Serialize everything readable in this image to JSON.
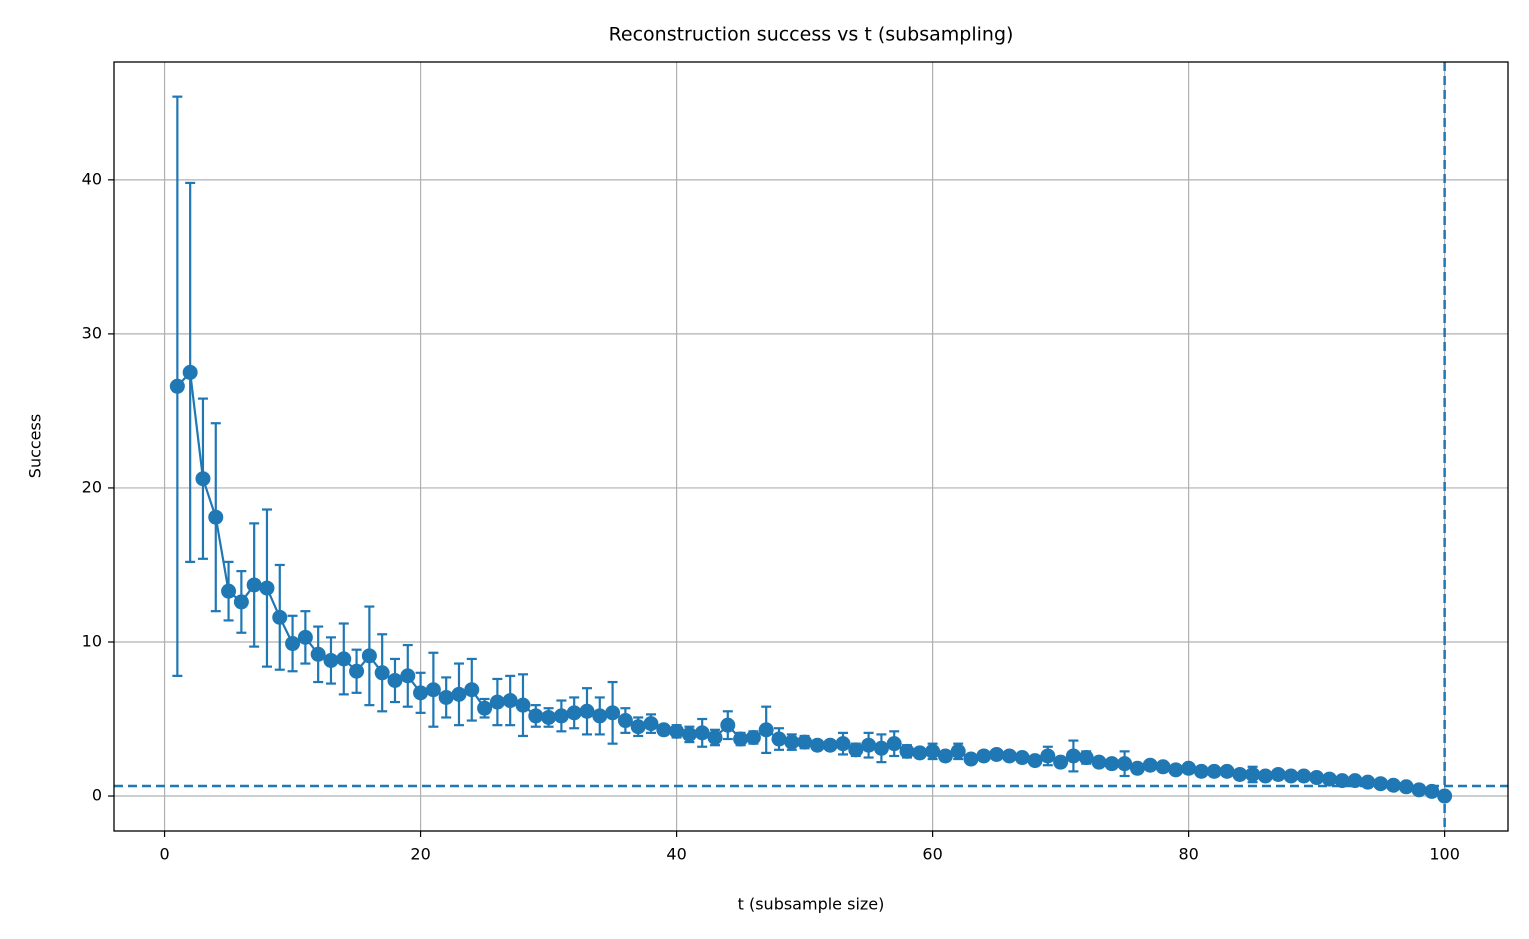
{
  "chart_data": {
    "type": "errorbar",
    "title": "Reconstruction success vs t (subsampling)",
    "xlabel": "t (subsample size)",
    "ylabel": "Success",
    "x": [
      1,
      2,
      3,
      4,
      5,
      6,
      7,
      8,
      9,
      10,
      11,
      12,
      13,
      14,
      15,
      16,
      17,
      18,
      19,
      20,
      21,
      22,
      23,
      24,
      25,
      26,
      27,
      28,
      29,
      30,
      31,
      32,
      33,
      34,
      35,
      36,
      37,
      38,
      39,
      40,
      41,
      42,
      43,
      44,
      45,
      46,
      47,
      48,
      49,
      50,
      51,
      52,
      53,
      54,
      55,
      56,
      57,
      58,
      59,
      60,
      61,
      62,
      63,
      64,
      65,
      66,
      67,
      68,
      69,
      70,
      71,
      72,
      73,
      74,
      75,
      76,
      77,
      78,
      79,
      80,
      81,
      82,
      83,
      84,
      85,
      86,
      87,
      88,
      89,
      90,
      91,
      92,
      93,
      94,
      95,
      96,
      97,
      98,
      99,
      100
    ],
    "series": [
      {
        "color": "#1f77b4",
        "values": [
          26.6,
          27.5,
          20.6,
          18.1,
          13.3,
          12.6,
          13.7,
          13.5,
          11.6,
          9.9,
          10.3,
          9.2,
          8.8,
          8.9,
          8.1,
          9.1,
          8.0,
          7.5,
          7.8,
          6.7,
          6.9,
          6.4,
          6.6,
          6.9,
          5.7,
          6.1,
          6.2,
          5.9,
          5.2,
          5.1,
          5.2,
          5.4,
          5.5,
          5.2,
          5.4,
          4.9,
          4.5,
          4.7,
          4.3,
          4.2,
          4.0,
          4.1,
          3.8,
          4.6,
          3.7,
          3.8,
          4.3,
          3.7,
          3.5,
          3.5,
          3.3,
          3.3,
          3.4,
          3.0,
          3.3,
          3.1,
          3.4,
          2.9,
          2.8,
          2.9,
          2.6,
          2.9,
          2.4,
          2.6,
          2.7,
          2.6,
          2.5,
          2.3,
          2.6,
          2.2,
          2.6,
          2.5,
          2.2,
          2.1,
          2.1,
          1.8,
          2.0,
          1.9,
          1.7,
          1.8,
          1.6,
          1.6,
          1.6,
          1.4,
          1.4,
          1.3,
          1.4,
          1.3,
          1.3,
          1.2,
          1.1,
          1.0,
          1.0,
          0.9,
          0.8,
          0.7,
          0.6,
          0.4,
          0.3,
          0.0
        ],
        "errors": [
          18.8,
          12.3,
          5.2,
          6.1,
          1.9,
          2.0,
          4.0,
          5.1,
          3.4,
          1.8,
          1.7,
          1.8,
          1.5,
          2.3,
          1.4,
          3.2,
          2.5,
          1.4,
          2.0,
          1.3,
          2.4,
          1.3,
          2.0,
          2.0,
          0.6,
          1.5,
          1.6,
          2.0,
          0.7,
          0.6,
          1.0,
          1.0,
          1.5,
          1.2,
          2.0,
          0.8,
          0.6,
          0.6,
          0.3,
          0.4,
          0.5,
          0.9,
          0.5,
          0.9,
          0.4,
          0.4,
          1.5,
          0.7,
          0.5,
          0.4,
          0.3,
          0.3,
          0.7,
          0.4,
          0.8,
          0.9,
          0.8,
          0.4,
          0.3,
          0.5,
          0.3,
          0.5,
          0.2,
          0.2,
          0.2,
          0.2,
          0.2,
          0.2,
          0.6,
          0.3,
          1.0,
          0.4,
          0.2,
          0.2,
          0.8,
          0.2,
          0.2,
          0.2,
          0.2,
          0.2,
          0.2,
          0.2,
          0.2,
          0.3,
          0.5,
          0.2,
          0.2,
          0.2,
          0.2,
          0.2,
          0.1,
          0.1,
          0.1,
          0.1,
          0.1,
          0.1,
          0.1,
          0.1,
          0.1,
          0.0
        ]
      }
    ],
    "reference_lines": {
      "y": 0.65,
      "x": 100,
      "color": "#1f77b4",
      "style": "dashed"
    },
    "xlim": [
      -3.95,
      104.95
    ],
    "xticks": [
      0,
      20,
      40,
      60,
      80,
      100
    ],
    "ylim": [
      -2.27,
      47.65
    ],
    "yticks": [
      0,
      10,
      20,
      30,
      40
    ],
    "grid": true
  }
}
